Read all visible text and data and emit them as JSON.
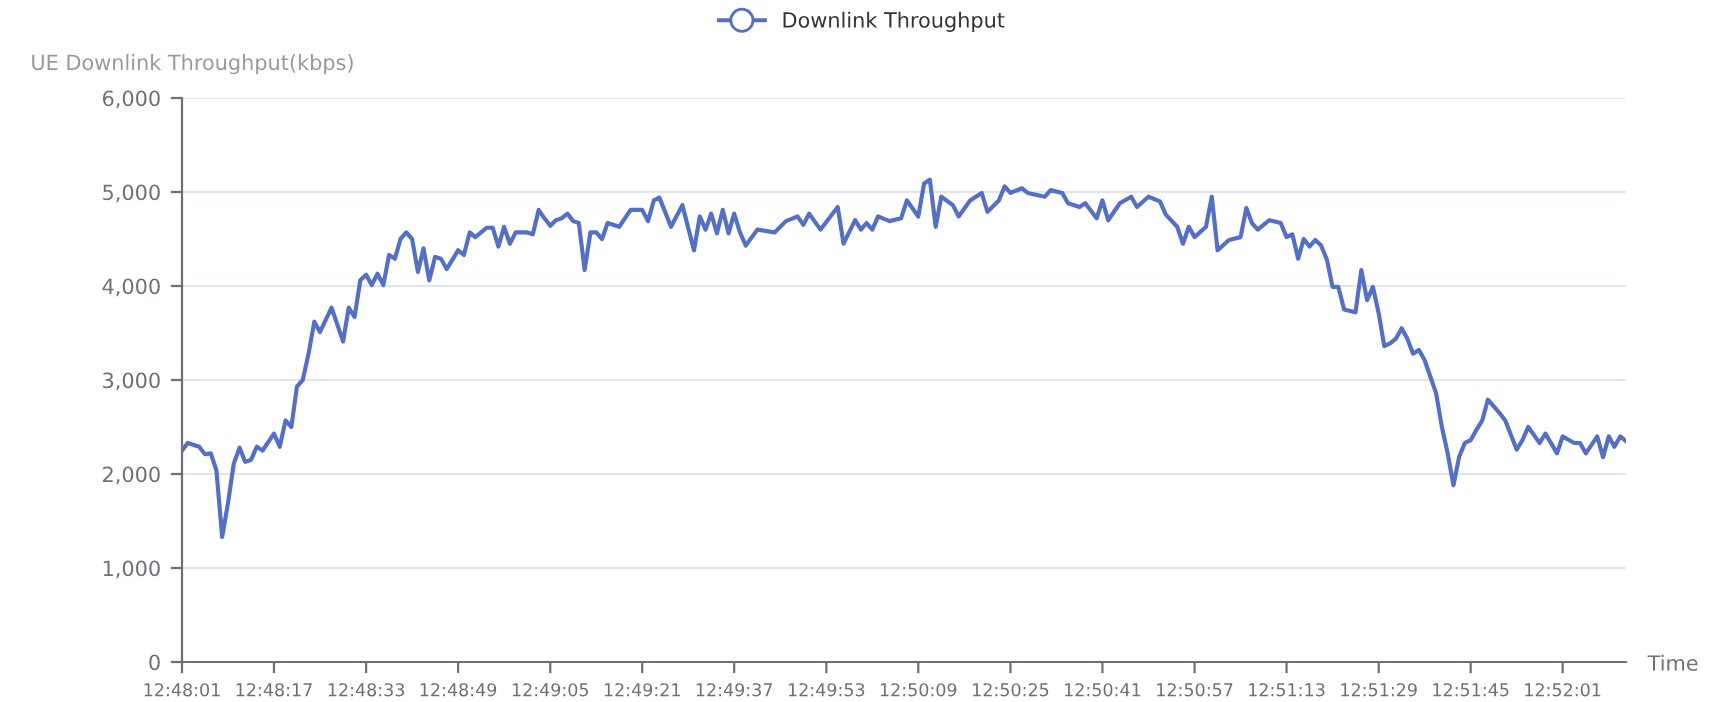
{
  "chart_data": {
    "type": "line",
    "ylabel": "UE Downlink Throughput(kbps)",
    "xlabel": "Time",
    "legend": "top",
    "grid": "y",
    "line_style": "solid",
    "xlim": [
      12.80028,
      12.87
    ],
    "ylim": [
      0,
      6000
    ],
    "yticks": [
      {
        "value": 0,
        "label": "0"
      },
      {
        "value": 1000,
        "label": "1,000"
      },
      {
        "value": 2000,
        "label": "2,000"
      },
      {
        "value": 3000,
        "label": "3,000"
      },
      {
        "value": 4000,
        "label": "4,000"
      },
      {
        "value": 5000,
        "label": "5,000"
      },
      {
        "value": 6000,
        "label": "6,000"
      }
    ],
    "xticks": [
      {
        "value": 12.80028,
        "label": "12:48:01"
      },
      {
        "value": 12.80472,
        "label": "12:48:17"
      },
      {
        "value": 12.80917,
        "label": "12:48:33"
      },
      {
        "value": 12.81361,
        "label": "12:48:49"
      },
      {
        "value": 12.81806,
        "label": "12:49:05"
      },
      {
        "value": 12.8225,
        "label": "12:49:21"
      },
      {
        "value": 12.82694,
        "label": "12:49:37"
      },
      {
        "value": 12.83139,
        "label": "12:49:53"
      },
      {
        "value": 12.83583,
        "label": "12:50:09"
      },
      {
        "value": 12.84028,
        "label": "12:50:25"
      },
      {
        "value": 12.84472,
        "label": "12:50:41"
      },
      {
        "value": 12.84917,
        "label": "12:50:57"
      },
      {
        "value": 12.85361,
        "label": "12:51:13"
      },
      {
        "value": 12.85806,
        "label": "12:51:29"
      },
      {
        "value": 12.8625,
        "label": "12:51:45"
      },
      {
        "value": 12.86694,
        "label": "12:52:01"
      }
    ],
    "series": [
      {
        "name": "Downlink Throughput",
        "color": "#5470c6",
        "x": [
          12.80028,
          12.80056,
          12.80111,
          12.80139,
          12.80167,
          12.80194,
          12.80222,
          12.8025,
          12.80278,
          12.80306,
          12.80333,
          12.80361,
          12.80389,
          12.80417,
          12.80472,
          12.805,
          12.80528,
          12.80556,
          12.80583,
          12.80611,
          12.80639,
          12.80667,
          12.80694,
          12.8075,
          12.80806,
          12.80833,
          12.80861,
          12.80889,
          12.80917,
          12.80944,
          12.80972,
          12.81,
          12.81028,
          12.81056,
          12.81083,
          12.81111,
          12.81139,
          12.81167,
          12.81194,
          12.81222,
          12.8125,
          12.81278,
          12.81306,
          12.81361,
          12.81389,
          12.81417,
          12.81444,
          12.815,
          12.81528,
          12.81556,
          12.81583,
          12.81611,
          12.81639,
          12.81694,
          12.81722,
          12.8175,
          12.81778,
          12.81806,
          12.81833,
          12.81861,
          12.81889,
          12.81917,
          12.81944,
          12.81972,
          12.82,
          12.82028,
          12.82056,
          12.82083,
          12.82139,
          12.82194,
          12.8225,
          12.82278,
          12.82306,
          12.82333,
          12.82389,
          12.82444,
          12.825,
          12.82528,
          12.82556,
          12.82583,
          12.82611,
          12.82639,
          12.82667,
          12.82694,
          12.82722,
          12.8275,
          12.82806,
          12.82889,
          12.82944,
          12.83,
          12.83028,
          12.83056,
          12.83111,
          12.83194,
          12.83222,
          12.83278,
          12.83306,
          12.83333,
          12.83361,
          12.83389,
          12.83444,
          12.835,
          12.83528,
          12.83583,
          12.83611,
          12.83639,
          12.83667,
          12.83694,
          12.8375,
          12.83778,
          12.83833,
          12.83889,
          12.83917,
          12.83972,
          12.84,
          12.84028,
          12.84083,
          12.84111,
          12.84194,
          12.84222,
          12.84278,
          12.84306,
          12.84361,
          12.84389,
          12.84444,
          12.84472,
          12.845,
          12.84556,
          12.84611,
          12.84639,
          12.84694,
          12.8475,
          12.84778,
          12.84833,
          12.84861,
          12.84889,
          12.84917,
          12.84972,
          12.85,
          12.85028,
          12.85083,
          12.85139,
          12.85167,
          12.85194,
          12.85222,
          12.85278,
          12.85333,
          12.85361,
          12.85389,
          12.85417,
          12.85444,
          12.85472,
          12.855,
          12.85528,
          12.85556,
          12.85583,
          12.85611,
          12.85639,
          12.85694,
          12.85722,
          12.8575,
          12.85778,
          12.85806,
          12.85833,
          12.85861,
          12.85889,
          12.85917,
          12.85944,
          12.85972,
          12.86,
          12.86028,
          12.86083,
          12.86111,
          12.86139,
          12.86167,
          12.86194,
          12.86222,
          12.8625,
          12.86278,
          12.86306,
          12.86333,
          12.86389,
          12.86417,
          12.86472,
          12.865,
          12.86528,
          12.86583,
          12.86611,
          12.86667,
          12.86694,
          12.8675,
          12.86778,
          12.86806,
          12.86861,
          12.86889,
          12.86917,
          12.86944,
          12.86972,
          12.87
        ],
        "values": [
          2250,
          2330,
          2290,
          2210,
          2220,
          2040,
          1330,
          1690,
          2110,
          2280,
          2130,
          2150,
          2290,
          2250,
          2430,
          2290,
          2570,
          2500,
          2930,
          3000,
          3280,
          3620,
          3510,
          3770,
          3410,
          3770,
          3670,
          4060,
          4120,
          4010,
          4130,
          4010,
          4330,
          4290,
          4500,
          4570,
          4500,
          4150,
          4400,
          4060,
          4310,
          4290,
          4180,
          4380,
          4330,
          4570,
          4520,
          4620,
          4620,
          4420,
          4630,
          4450,
          4570,
          4570,
          4550,
          4810,
          4720,
          4640,
          4700,
          4720,
          4770,
          4690,
          4670,
          4170,
          4570,
          4570,
          4500,
          4670,
          4630,
          4810,
          4810,
          4690,
          4910,
          4940,
          4630,
          4860,
          4380,
          4740,
          4600,
          4770,
          4560,
          4810,
          4560,
          4770,
          4570,
          4430,
          4600,
          4570,
          4690,
          4740,
          4650,
          4770,
          4600,
          4840,
          4450,
          4700,
          4600,
          4670,
          4600,
          4740,
          4690,
          4720,
          4910,
          4740,
          5090,
          5130,
          4630,
          4950,
          4860,
          4740,
          4910,
          4990,
          4790,
          4910,
          5060,
          4990,
          5040,
          4990,
          4950,
          5020,
          4990,
          4880,
          4840,
          4880,
          4720,
          4910,
          4700,
          4880,
          4950,
          4840,
          4950,
          4900,
          4760,
          4630,
          4450,
          4630,
          4520,
          4630,
          4950,
          4380,
          4490,
          4520,
          4830,
          4670,
          4600,
          4700,
          4670,
          4520,
          4550,
          4290,
          4500,
          4420,
          4490,
          4430,
          4280,
          3990,
          3990,
          3750,
          3720,
          4170,
          3850,
          3990,
          3710,
          3360,
          3390,
          3440,
          3550,
          3440,
          3280,
          3320,
          3210,
          2860,
          2500,
          2220,
          1880,
          2180,
          2330,
          2360,
          2470,
          2570,
          2790,
          2650,
          2570,
          2260,
          2360,
          2500,
          2330,
          2430,
          2220,
          2400,
          2330,
          2330,
          2220,
          2400,
          2180,
          2400,
          2290,
          2400,
          2350
        ]
      }
    ]
  }
}
